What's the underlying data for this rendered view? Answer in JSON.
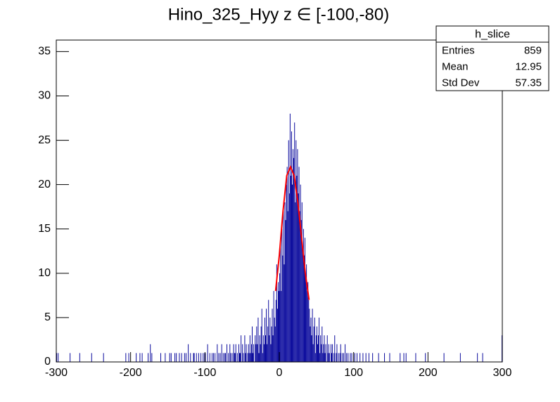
{
  "chart_data": {
    "type": "histogram",
    "title": "Hino_325_Hyy z  ∈ [-100,-80)",
    "xlim": [
      -300,
      300
    ],
    "ylim": [
      0,
      36.3
    ],
    "xticks": [
      -300,
      -200,
      -100,
      0,
      100,
      200,
      300
    ],
    "yticks": [
      0,
      5,
      10,
      15,
      20,
      25,
      30,
      35
    ],
    "color": "#000099",
    "values": [
      1,
      0,
      1,
      0,
      0,
      0,
      0,
      0,
      0,
      0,
      0,
      0,
      0,
      0,
      0,
      0,
      0,
      0,
      1,
      0,
      0,
      0,
      0,
      0,
      0,
      0,
      0,
      0,
      0,
      0,
      0,
      1,
      0,
      0,
      0,
      0,
      0,
      0,
      0,
      0,
      0,
      0,
      0,
      0,
      0,
      0,
      0,
      1,
      0,
      0,
      0,
      0,
      0,
      0,
      0,
      0,
      0,
      0,
      0,
      0,
      0,
      0,
      0,
      1,
      0,
      0,
      0,
      0,
      0,
      0,
      0,
      0,
      0,
      0,
      0,
      0,
      0,
      0,
      0,
      0,
      0,
      0,
      0,
      0,
      0,
      0,
      0,
      0,
      0,
      0,
      0,
      0,
      0,
      1,
      0,
      0,
      0,
      1,
      0,
      0,
      0,
      0,
      0,
      0,
      0,
      0,
      0,
      1,
      0,
      0,
      0,
      0,
      1,
      0,
      0,
      1,
      0,
      0,
      0,
      0,
      0,
      0,
      0,
      1,
      0,
      0,
      2,
      0,
      1,
      0,
      0,
      0,
      0,
      0,
      0,
      0,
      0,
      0,
      0,
      0,
      1,
      0,
      0,
      0,
      0,
      0,
      1,
      0,
      0,
      0,
      0,
      0,
      1,
      0,
      1,
      0,
      0,
      0,
      0,
      1,
      0,
      1,
      0,
      0,
      0,
      1,
      0,
      0,
      1,
      0,
      0,
      0,
      1,
      0,
      1,
      0,
      0,
      2,
      0,
      0,
      1,
      0,
      0,
      0,
      1,
      1,
      0,
      0,
      1,
      0,
      0,
      1,
      0,
      0,
      1,
      0,
      0,
      1,
      0,
      1,
      1,
      0,
      0,
      2,
      0,
      0,
      1,
      0,
      0,
      1,
      0,
      1,
      0,
      1,
      0,
      0,
      2,
      0,
      1,
      0,
      1,
      0,
      2,
      0,
      1,
      0,
      1,
      1,
      0,
      2,
      0,
      1,
      0,
      2,
      1,
      0,
      1,
      0,
      2,
      1,
      1,
      2,
      0,
      1,
      0,
      2,
      1,
      1,
      3,
      0,
      2,
      1,
      0,
      3,
      1,
      2,
      0,
      1,
      2,
      1,
      3,
      1,
      2,
      4,
      1,
      2,
      0,
      3,
      2,
      4,
      2,
      5,
      1,
      3,
      2,
      4,
      6,
      1,
      3,
      2,
      5,
      3,
      6,
      2,
      4,
      7,
      3,
      5,
      2,
      4,
      6,
      3,
      8,
      5,
      4,
      7,
      11,
      6,
      9,
      8,
      10,
      14,
      8,
      15,
      12,
      17,
      11,
      18,
      16,
      20,
      22,
      17,
      25,
      19,
      28,
      21,
      26,
      20,
      24,
      23,
      27,
      18,
      25,
      21,
      24,
      19,
      22,
      17,
      20,
      16,
      18,
      13,
      15,
      12,
      14,
      10,
      11,
      8,
      9,
      7,
      6,
      4,
      5,
      3,
      6,
      2,
      4,
      5,
      1,
      3,
      4,
      2,
      3,
      5,
      1,
      3,
      2,
      4,
      1,
      2,
      3,
      1,
      2,
      0,
      3,
      1,
      2,
      1,
      0,
      2,
      1,
      2,
      0,
      1,
      3,
      0,
      1,
      2,
      0,
      1,
      0,
      1,
      2,
      0,
      1,
      0,
      1,
      0,
      2,
      0,
      1,
      0,
      1,
      0,
      0,
      1,
      0,
      1,
      0,
      0,
      0,
      1,
      0,
      0,
      1,
      0,
      0,
      0,
      1,
      0,
      0,
      0,
      1,
      0,
      0,
      0,
      1,
      0,
      0,
      0,
      1,
      0,
      0,
      0,
      0,
      1,
      0,
      0,
      0,
      0,
      0,
      0,
      0,
      1,
      0,
      0,
      0,
      0,
      0,
      0,
      0,
      1,
      0,
      0,
      0,
      0,
      0,
      0,
      1,
      0,
      0,
      0,
      0,
      0,
      0,
      0,
      0,
      0,
      0,
      0,
      0,
      0,
      1,
      0,
      0,
      0,
      0,
      1,
      0,
      0,
      1,
      0,
      0,
      0,
      0,
      0,
      0,
      0,
      0,
      0,
      0,
      0,
      0,
      1,
      0,
      0,
      0,
      0,
      0,
      0,
      0,
      0,
      0,
      0,
      0,
      0,
      1,
      0,
      0,
      0,
      0,
      0,
      0,
      0,
      0,
      0,
      0,
      0,
      0,
      0,
      0,
      0,
      0,
      0,
      0,
      0,
      0,
      0,
      0,
      0,
      0,
      1,
      0,
      0,
      0,
      0,
      0,
      0,
      0,
      0,
      0,
      0,
      0,
      0,
      0,
      0,
      0,
      0,
      0,
      0,
      0,
      0,
      0,
      1,
      0,
      0,
      0,
      0,
      0,
      0,
      0,
      0,
      0,
      0,
      0,
      0,
      0,
      0,
      0,
      0,
      0,
      0,
      0,
      0,
      0,
      0,
      1,
      0,
      0,
      0,
      0,
      0,
      0,
      1,
      0,
      0,
      0,
      0,
      0,
      0,
      0,
      0,
      0,
      0,
      0,
      0,
      0,
      0,
      0,
      0,
      0,
      0,
      0,
      0,
      0,
      0,
      0,
      0,
      0,
      3
    ],
    "fit": {
      "color": "#ff0000",
      "x": [
        -5,
        0,
        5,
        10,
        15,
        20,
        25,
        30,
        35,
        40
      ],
      "values": [
        8,
        12,
        17,
        21,
        22,
        21,
        18,
        14,
        10,
        7
      ]
    },
    "stats": {
      "title": "h_slice",
      "rows": [
        {
          "label": "Entries",
          "value": 859
        },
        {
          "label": "Mean",
          "value": 12.95
        },
        {
          "label": "Std Dev",
          "value": 57.35
        }
      ]
    }
  }
}
